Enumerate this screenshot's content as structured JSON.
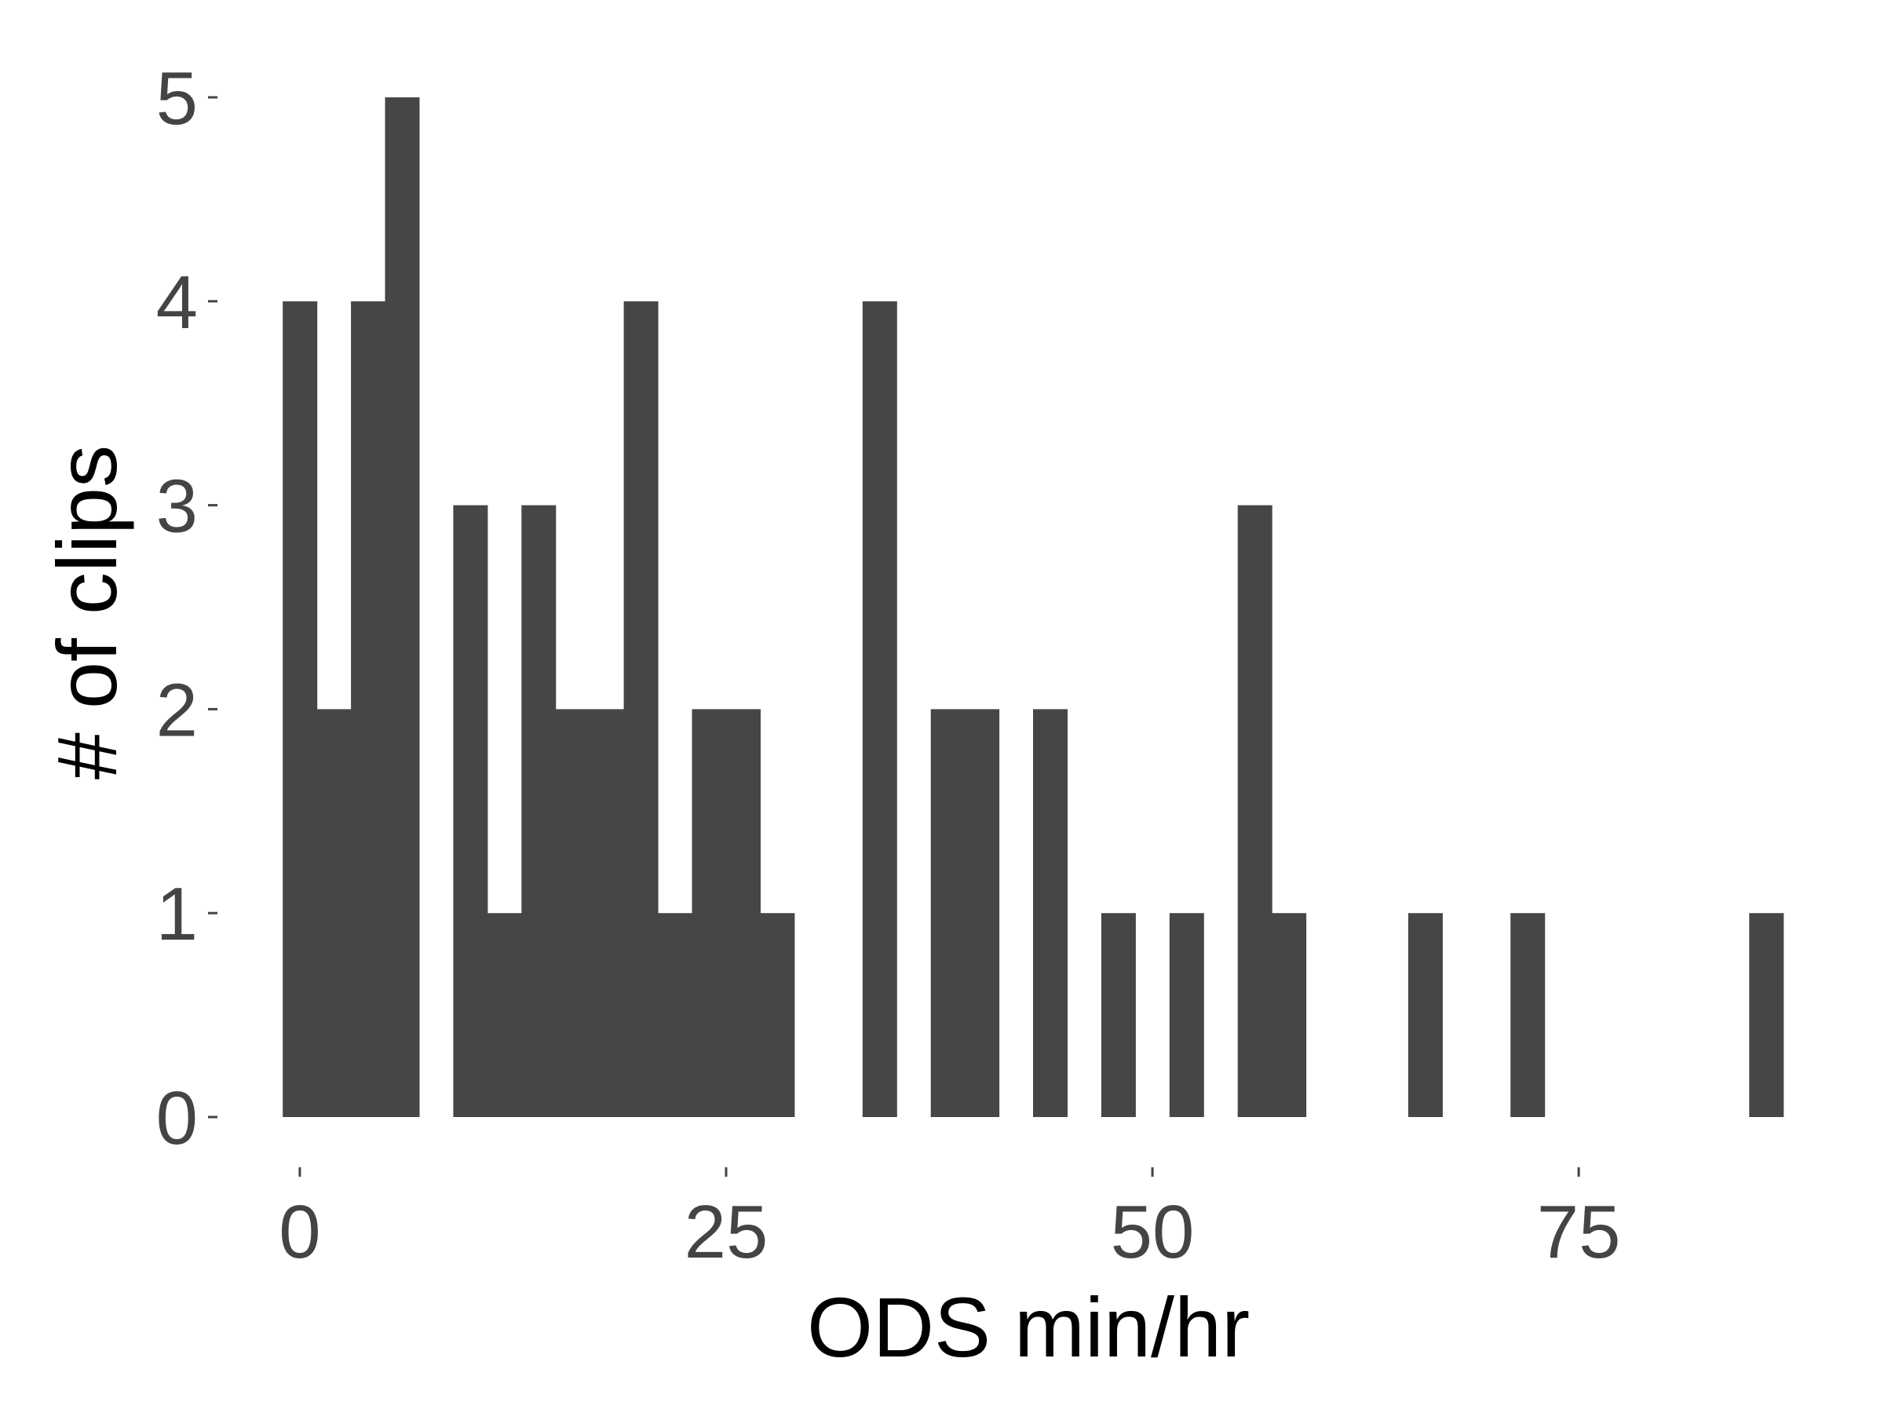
{
  "colors": {
    "bar": "#464646",
    "tick": "#444444",
    "axis_title": "#000000",
    "background": "#ffffff"
  },
  "chart_data": {
    "type": "bar",
    "title": "",
    "xlabel": "ODS min/hr",
    "ylabel": "# of clips",
    "xlim": [
      -1.7,
      88.3
    ],
    "ylim": [
      0,
      5
    ],
    "grid": false,
    "bin_width": 2.0,
    "xticks": [
      0,
      25,
      50,
      75
    ],
    "yticks": [
      0,
      1,
      2,
      3,
      4,
      5
    ],
    "bins": [
      {
        "x0": -1,
        "x1": 1,
        "count": 4
      },
      {
        "x0": 1,
        "x1": 3,
        "count": 2
      },
      {
        "x0": 3,
        "x1": 5,
        "count": 4
      },
      {
        "x0": 5,
        "x1": 7,
        "count": 5
      },
      {
        "x0": 9,
        "x1": 11,
        "count": 3
      },
      {
        "x0": 11,
        "x1": 13,
        "count": 1
      },
      {
        "x0": 13,
        "x1": 15,
        "count": 3
      },
      {
        "x0": 15,
        "x1": 17,
        "count": 2
      },
      {
        "x0": 17,
        "x1": 19,
        "count": 2
      },
      {
        "x0": 19,
        "x1": 21,
        "count": 4
      },
      {
        "x0": 21,
        "x1": 23,
        "count": 1
      },
      {
        "x0": 23,
        "x1": 25,
        "count": 2
      },
      {
        "x0": 25,
        "x1": 27,
        "count": 2
      },
      {
        "x0": 27,
        "x1": 29,
        "count": 1
      },
      {
        "x0": 33,
        "x1": 35,
        "count": 4
      },
      {
        "x0": 37,
        "x1": 39,
        "count": 2
      },
      {
        "x0": 39,
        "x1": 41,
        "count": 2
      },
      {
        "x0": 43,
        "x1": 45,
        "count": 2
      },
      {
        "x0": 47,
        "x1": 49,
        "count": 1
      },
      {
        "x0": 51,
        "x1": 53,
        "count": 1
      },
      {
        "x0": 55,
        "x1": 57,
        "count": 3
      },
      {
        "x0": 57,
        "x1": 59,
        "count": 1
      },
      {
        "x0": 65,
        "x1": 67,
        "count": 1
      },
      {
        "x0": 71,
        "x1": 73,
        "count": 1
      },
      {
        "x0": 85,
        "x1": 87,
        "count": 1
      }
    ]
  }
}
